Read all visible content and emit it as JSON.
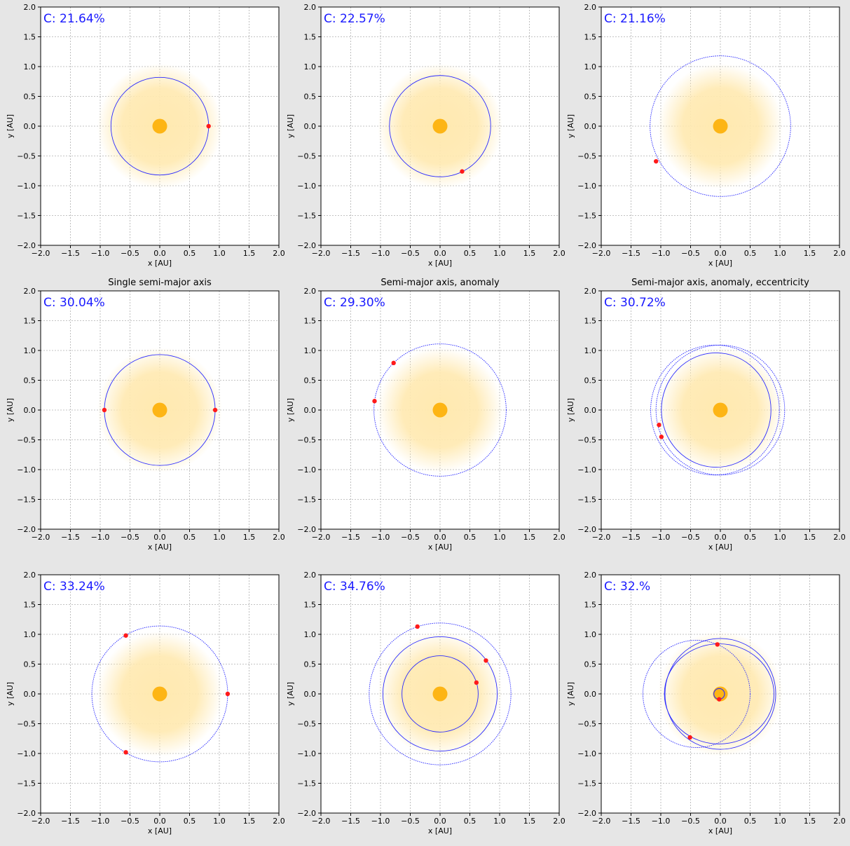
{
  "colors": {
    "figure_bg": "#e6e6e6",
    "axes_bg": "#ffffff",
    "orbit": "#2a2aff",
    "planet": "#ff1a1a",
    "star": "#fdb515",
    "halo": "#ffe9b0",
    "grid": "#b0b0b0",
    "annotation": "#1a1aff"
  },
  "chart_data": [
    {
      "type": "scatter",
      "title": "",
      "annotation": "C: 21.64%",
      "xlabel": "x [AU]",
      "ylabel": "y [AU]",
      "xlim": [
        -2,
        2
      ],
      "ylim": [
        -2,
        2
      ],
      "grid": true,
      "ticks": [
        "−2.0",
        "−1.5",
        "−1.0",
        "−0.5",
        "0.0",
        "0.5",
        "1.0",
        "1.5",
        "2.0"
      ],
      "star": {
        "x": 0,
        "y": 0
      },
      "halo_radius": 1.05,
      "orbits": [
        {
          "cx": 0,
          "cy": 0,
          "rx": 0.82,
          "ry": 0.82,
          "dotted": false
        }
      ],
      "planets": [
        {
          "x": 0.82,
          "y": 0.0
        }
      ]
    },
    {
      "type": "scatter",
      "title": "",
      "annotation": "C: 22.57%",
      "xlabel": "x [AU]",
      "ylabel": "y [AU]",
      "xlim": [
        -2,
        2
      ],
      "ylim": [
        -2,
        2
      ],
      "grid": true,
      "ticks": [
        "−2.0",
        "−1.5",
        "−1.0",
        "−0.5",
        "0.0",
        "0.5",
        "1.0",
        "1.5",
        "2.0"
      ],
      "star": {
        "x": 0,
        "y": 0
      },
      "halo_radius": 1.05,
      "orbits": [
        {
          "cx": 0,
          "cy": 0,
          "rx": 0.85,
          "ry": 0.85,
          "dotted": false
        }
      ],
      "planets": [
        {
          "x": 0.37,
          "y": -0.76
        }
      ]
    },
    {
      "type": "scatter",
      "title": "",
      "annotation": "C: 21.16%",
      "xlabel": "x [AU]",
      "ylabel": "y [AU]",
      "xlim": [
        -2,
        2
      ],
      "ylim": [
        -2,
        2
      ],
      "grid": true,
      "ticks": [
        "−2.0",
        "−1.5",
        "−1.0",
        "−0.5",
        "0.0",
        "0.5",
        "1.0",
        "1.5",
        "2.0"
      ],
      "star": {
        "x": 0,
        "y": 0
      },
      "halo_radius": 1.05,
      "orbits": [
        {
          "cx": 0,
          "cy": 0,
          "rx": 1.18,
          "ry": 1.18,
          "dotted": true
        }
      ],
      "planets": [
        {
          "x": -1.08,
          "y": -0.59
        }
      ]
    },
    {
      "type": "scatter",
      "title": "Single semi-major axis",
      "annotation": "C: 30.04%",
      "xlabel": "x [AU]",
      "ylabel": "y [AU]",
      "xlim": [
        -2,
        2
      ],
      "ylim": [
        -2,
        2
      ],
      "grid": true,
      "ticks": [
        "−2.0",
        "−1.5",
        "−1.0",
        "−0.5",
        "0.0",
        "0.5",
        "1.0",
        "1.5",
        "2.0"
      ],
      "star": {
        "x": 0,
        "y": 0
      },
      "halo_radius": 1.05,
      "orbits": [
        {
          "cx": 0,
          "cy": 0,
          "rx": 0.93,
          "ry": 0.93,
          "dotted": false
        }
      ],
      "planets": [
        {
          "x": -0.93,
          "y": 0.0
        },
        {
          "x": 0.93,
          "y": 0.0
        }
      ]
    },
    {
      "type": "scatter",
      "title": "Semi-major axis, anomaly",
      "annotation": "C: 29.30%",
      "xlabel": "x [AU]",
      "ylabel": "y [AU]",
      "xlim": [
        -2,
        2
      ],
      "ylim": [
        -2,
        2
      ],
      "grid": true,
      "ticks": [
        "−2.0",
        "−1.5",
        "−1.0",
        "−0.5",
        "0.0",
        "0.5",
        "1.0",
        "1.5",
        "2.0"
      ],
      "star": {
        "x": 0,
        "y": 0
      },
      "halo_radius": 1.05,
      "orbits": [
        {
          "cx": 0,
          "cy": 0,
          "rx": 1.11,
          "ry": 1.11,
          "dotted": true
        }
      ],
      "planets": [
        {
          "x": -0.78,
          "y": 0.79
        },
        {
          "x": -1.1,
          "y": 0.15
        }
      ]
    },
    {
      "type": "scatter",
      "title": "Semi-major axis, anomaly, eccentricity",
      "annotation": "C: 30.72%",
      "xlabel": "x [AU]",
      "ylabel": "y [AU]",
      "xlim": [
        -2,
        2
      ],
      "ylim": [
        -2,
        2
      ],
      "grid": true,
      "ticks": [
        "−2.0",
        "−1.5",
        "−1.0",
        "−0.5",
        "0.0",
        "0.5",
        "1.0",
        "1.5",
        "2.0"
      ],
      "star": {
        "x": 0,
        "y": 0
      },
      "halo_radius": 1.05,
      "orbits": [
        {
          "cx": 0.0,
          "cy": 0.0,
          "rx": 1.08,
          "ry": 1.09,
          "dotted": true
        },
        {
          "cx": -0.09,
          "cy": 0.0,
          "rx": 1.08,
          "ry": 1.09,
          "dotted": true
        },
        {
          "cx": -0.07,
          "cy": 0.0,
          "rx": 0.92,
          "ry": 0.96,
          "dotted": false
        }
      ],
      "planets": [
        {
          "x": -1.03,
          "y": -0.25
        },
        {
          "x": -0.99,
          "y": -0.45
        }
      ]
    },
    {
      "type": "scatter",
      "title": "",
      "annotation": "C: 33.24%",
      "xlabel": "x [AU]",
      "ylabel": "y [AU]",
      "xlim": [
        -2,
        2
      ],
      "ylim": [
        -2,
        2
      ],
      "grid": true,
      "ticks": [
        "−2.0",
        "−1.5",
        "−1.0",
        "−0.5",
        "0.0",
        "0.5",
        "1.0",
        "1.5",
        "2.0"
      ],
      "star": {
        "x": 0,
        "y": 0
      },
      "halo_radius": 1.05,
      "orbits": [
        {
          "cx": 0,
          "cy": 0,
          "rx": 1.14,
          "ry": 1.14,
          "dotted": true
        }
      ],
      "planets": [
        {
          "x": -0.57,
          "y": 0.98
        },
        {
          "x": 1.14,
          "y": 0.0
        },
        {
          "x": -0.57,
          "y": -0.98
        }
      ]
    },
    {
      "type": "scatter",
      "title": "",
      "annotation": "C: 34.76%",
      "xlabel": "x [AU]",
      "ylabel": "y [AU]",
      "xlim": [
        -2,
        2
      ],
      "ylim": [
        -2,
        2
      ],
      "grid": true,
      "ticks": [
        "−2.0",
        "−1.5",
        "−1.0",
        "−0.5",
        "0.0",
        "0.5",
        "1.0",
        "1.5",
        "2.0"
      ],
      "star": {
        "x": 0,
        "y": 0
      },
      "halo_radius": 1.05,
      "orbits": [
        {
          "cx": 0,
          "cy": 0,
          "rx": 1.19,
          "ry": 1.19,
          "dotted": true
        },
        {
          "cx": 0,
          "cy": 0,
          "rx": 0.96,
          "ry": 0.96,
          "dotted": false
        },
        {
          "cx": 0,
          "cy": 0,
          "rx": 0.64,
          "ry": 0.64,
          "dotted": false
        }
      ],
      "planets": [
        {
          "x": -0.38,
          "y": 1.13
        },
        {
          "x": 0.77,
          "y": 0.56
        },
        {
          "x": 0.61,
          "y": 0.19
        }
      ]
    },
    {
      "type": "scatter",
      "title": "",
      "annotation": "C: 32.%",
      "xlabel": "x [AU]",
      "ylabel": "y [AU]",
      "xlim": [
        -2,
        2
      ],
      "ylim": [
        -2,
        2
      ],
      "grid": true,
      "ticks": [
        "−2.0",
        "−1.5",
        "−1.0",
        "−0.5",
        "0.0",
        "0.5",
        "1.0",
        "1.5",
        "2.0"
      ],
      "star": {
        "x": 0,
        "y": 0
      },
      "halo_radius": 1.05,
      "orbits": [
        {
          "cx": -0.4,
          "cy": 0.0,
          "rx": 0.9,
          "ry": 0.9,
          "dotted": true
        },
        {
          "cx": 0.0,
          "cy": 0.0,
          "rx": 0.93,
          "ry": 0.93,
          "dotted": false
        },
        {
          "cx": -0.02,
          "cy": 0.0,
          "rx": 0.92,
          "ry": 0.84,
          "dotted": false
        },
        {
          "cx": -0.02,
          "cy": 0.0,
          "rx": 0.09,
          "ry": 0.09,
          "dotted": false
        }
      ],
      "planets": [
        {
          "x": -0.05,
          "y": 0.83
        },
        {
          "x": -0.51,
          "y": -0.73
        },
        {
          "x": -0.02,
          "y": -0.09
        }
      ]
    }
  ]
}
